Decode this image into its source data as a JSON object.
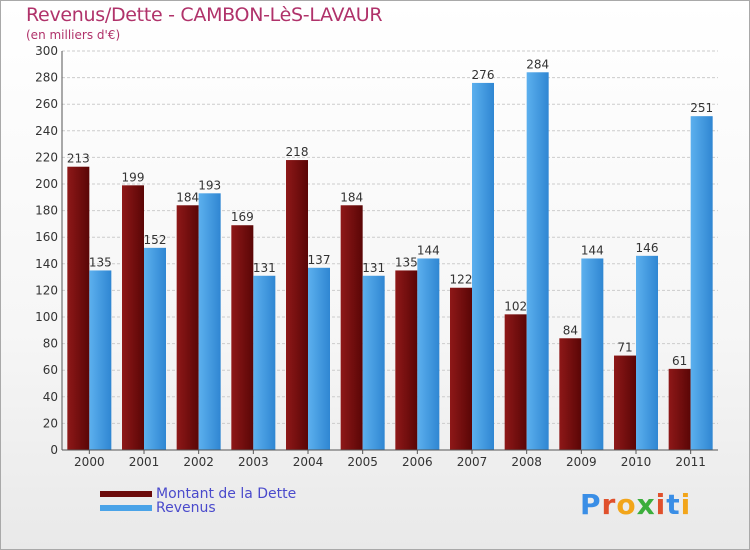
{
  "header": {
    "title": "Revenus/Dette - CAMBON-LèS-LAVAUR",
    "subtitle": "(en milliers d'€)"
  },
  "logo": {
    "text": "Proxiti",
    "letter_colors": [
      "#3a8ee6",
      "#e0502c",
      "#f2a51a",
      "#3cae3c",
      "#e0502c",
      "#3a8ee6",
      "#f2a51a"
    ]
  },
  "colors": {
    "dette": "#7a1010",
    "revenus": "#3d9ae4",
    "grid": "#cccccc",
    "axis_text": "#333333"
  },
  "legend": [
    {
      "label": "Montant de la Dette",
      "color": "#6b0a0a"
    },
    {
      "label": "Revenus",
      "color": "#4aa3e8"
    }
  ],
  "chart_data": {
    "type": "bar",
    "title": "Revenus/Dette - CAMBON-LèS-LAVAUR",
    "subtitle": "(en milliers d'€)",
    "categories": [
      "2000",
      "2001",
      "2002",
      "2003",
      "2004",
      "2005",
      "2006",
      "2007",
      "2008",
      "2009",
      "2010",
      "2011"
    ],
    "series": [
      {
        "name": "Montant de la Dette",
        "values": [
          213,
          199,
          184,
          169,
          218,
          184,
          135,
          122,
          102,
          84,
          71,
          61
        ]
      },
      {
        "name": "Revenus",
        "values": [
          135,
          152,
          193,
          131,
          137,
          131,
          144,
          276,
          284,
          144,
          146,
          251
        ]
      }
    ],
    "ylim": [
      0,
      300
    ],
    "yticks": [
      0,
      20,
      40,
      60,
      80,
      100,
      120,
      140,
      160,
      180,
      200,
      220,
      240,
      260,
      280,
      300
    ],
    "grid": true,
    "legend_position": "bottom-left",
    "data_labels": true
  }
}
